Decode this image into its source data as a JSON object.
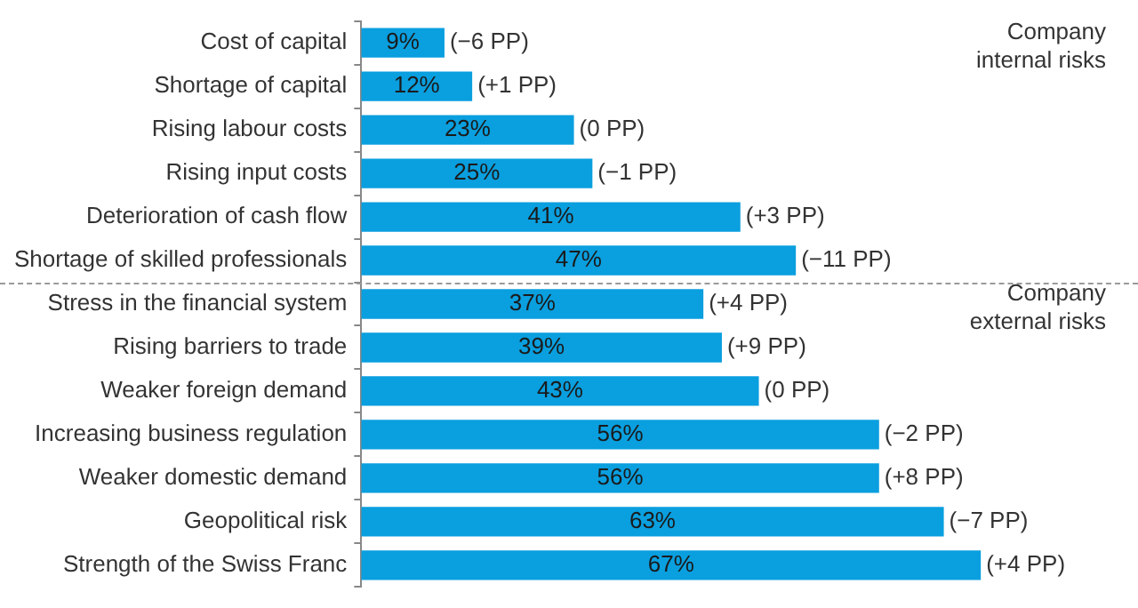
{
  "chart_data": {
    "type": "bar",
    "orientation": "horizontal",
    "categories": [
      "Cost of capital",
      "Shortage of capital",
      "Rising labour costs",
      "Rising input costs",
      "Deterioration of cash flow",
      "Shortage of skilled professionals",
      "Stress in the financial system",
      "Rising barriers to trade",
      "Weaker foreign demand",
      "Increasing business regulation",
      "Weaker domestic demand",
      "Geopolitical risk",
      "Strength of the Swiss Franc"
    ],
    "values": [
      9,
      12,
      23,
      25,
      41,
      47,
      37,
      39,
      43,
      56,
      56,
      63,
      67
    ],
    "value_labels": [
      "9%",
      "12%",
      "23%",
      "25%",
      "41%",
      "47%",
      "37%",
      "39%",
      "43%",
      "56%",
      "56%",
      "63%",
      "67%"
    ],
    "color": "#0a9fdf",
    "xlim": [
      0,
      84
    ],
    "tick_labels": "y",
    "grid": false,
    "legend": false,
    "annotations": [
      "Company internal risks",
      "Company external risks",
      {
        "text": "(−6 PP)",
        "x": 9,
        "y": "Cost of capital"
      },
      {
        "text": "(+1 PP)",
        "x": 12,
        "y": "Shortage of capital"
      },
      {
        "text": "(0 PP)",
        "x": 23,
        "y": "Rising labour costs"
      },
      {
        "text": "(−1 PP)",
        "x": 25,
        "y": "Rising input costs"
      },
      {
        "text": "(+3 PP)",
        "x": 41,
        "y": "Deterioration of cash flow"
      },
      {
        "text": "(−11 PP)",
        "x": 47,
        "y": "Shortage of skilled professionals"
      },
      {
        "text": "(+4 PP)",
        "x": 37,
        "y": "Stress in the financial system"
      },
      {
        "text": "(+9 PP)",
        "x": 39,
        "y": "Rising barriers to trade"
      },
      {
        "text": "(0 PP)",
        "x": 43,
        "y": "Weaker foreign demand"
      },
      {
        "text": "(−2 PP)",
        "x": 56,
        "y": "Increasing business regulation"
      },
      {
        "text": "(+8 PP)",
        "x": 56,
        "y": "Weaker domestic demand"
      },
      {
        "text": "(−7 PP)",
        "x": 63,
        "y": "Geopolitical risk"
      },
      {
        "text": "(+4 PP)",
        "x": 67,
        "y": "Strength of the Swiss Franc"
      }
    ]
  }
}
